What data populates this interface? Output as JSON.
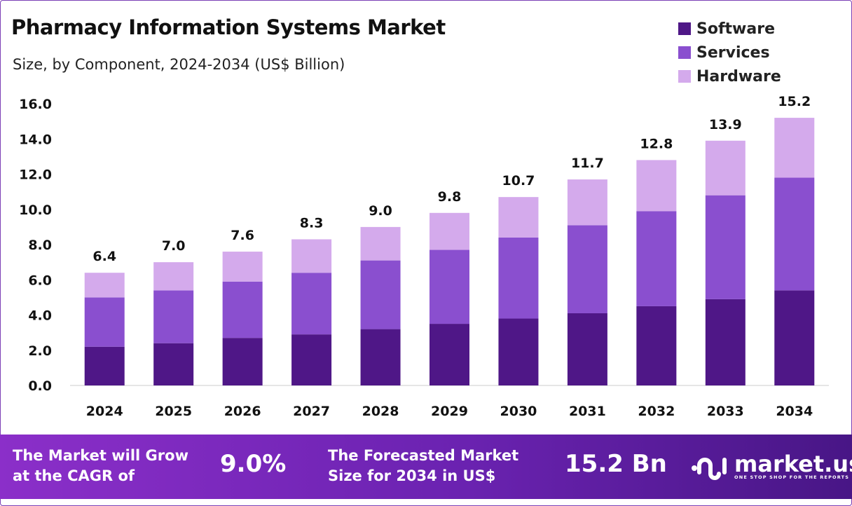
{
  "chart_data": {
    "type": "bar",
    "stacked": true,
    "title": "Pharmacy Information Systems Market",
    "subtitle": "Size, by Component, 2024-2034 (US$ Billion)",
    "xlabel": "",
    "ylabel": "",
    "ylim": [
      0,
      16
    ],
    "yticks": [
      "0.0",
      "2.0",
      "4.0",
      "6.0",
      "8.0",
      "10.0",
      "12.0",
      "14.0",
      "16.0"
    ],
    "grid": false,
    "legend_position": "top-right",
    "categories": [
      "2024",
      "2025",
      "2026",
      "2027",
      "2028",
      "2029",
      "2030",
      "2031",
      "2032",
      "2033",
      "2034"
    ],
    "series": [
      {
        "name": "Software",
        "color": "#4f1787",
        "values": [
          2.2,
          2.4,
          2.7,
          2.9,
          3.2,
          3.5,
          3.8,
          4.1,
          4.5,
          4.9,
          5.4
        ]
      },
      {
        "name": "Services",
        "color": "#8a4fcf",
        "values": [
          2.8,
          3.0,
          3.2,
          3.5,
          3.9,
          4.2,
          4.6,
          5.0,
          5.4,
          5.9,
          6.4
        ]
      },
      {
        "name": "Hardware",
        "color": "#d4aaec",
        "values": [
          1.4,
          1.6,
          1.7,
          1.9,
          1.9,
          2.1,
          2.3,
          2.6,
          2.9,
          3.1,
          3.4
        ]
      }
    ],
    "totals": [
      "6.4",
      "7.0",
      "7.6",
      "8.3",
      "9.0",
      "9.8",
      "10.7",
      "11.7",
      "12.8",
      "13.9",
      "15.2"
    ]
  },
  "footer": {
    "cagr_label_1": "The Market will Grow",
    "cagr_label_2": "at the CAGR of",
    "cagr_value": "9.0%",
    "forecast_label_1": "The Forecasted Market",
    "forecast_label_2": "Size for 2034 in US$",
    "forecast_value": "15.2 Bn",
    "logo_text": "market.us",
    "logo_tagline": "ONE STOP SHOP FOR THE REPORTS"
  }
}
